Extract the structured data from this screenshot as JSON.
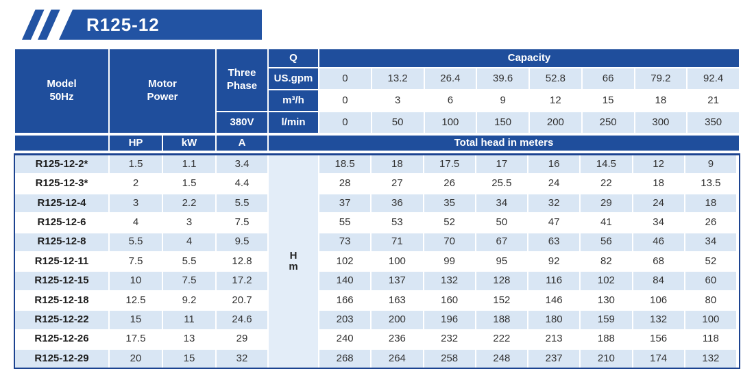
{
  "banner": {
    "title": "R125-12"
  },
  "colors": {
    "header_blue": "#1f4e9c",
    "banner_blue": "#2253a3",
    "light_row_blue": "#d9e6f4",
    "hm_column_blue": "#e3edf8",
    "border_navy": "#1c4390",
    "text_dark": "#333333",
    "text_white": "#ffffff"
  },
  "table": {
    "header": {
      "model_line1": "Model",
      "model_line2": "50Hz",
      "motor_line1": "Motor",
      "motor_line2": "Power",
      "three_phase_line1": "Three",
      "three_phase_line2": "Phase",
      "voltage": "380V",
      "q": "Q",
      "capacity": "Capacity",
      "unit_us_gpm": "US.gpm",
      "unit_m3h": "m³/h",
      "unit_lmin": "l/min",
      "us_gpm_values": [
        "0",
        "13.2",
        "26.4",
        "39.6",
        "52.8",
        "66",
        "79.2",
        "92.4"
      ],
      "m3h_values": [
        "0",
        "3",
        "6",
        "9",
        "12",
        "15",
        "18",
        "21"
      ],
      "lmin_values": [
        "0",
        "50",
        "100",
        "150",
        "200",
        "250",
        "300",
        "350"
      ],
      "hp": "HP",
      "kw": "kW",
      "amp": "A",
      "total_head": "Total head in meters",
      "head_unit_line1": "H",
      "head_unit_line2": "m"
    },
    "rows": [
      {
        "model": "R125-12-2*",
        "hp": "1.5",
        "kw": "1.1",
        "amp": "3.4",
        "heads": [
          "18.5",
          "18",
          "17.5",
          "17",
          "16",
          "14.5",
          "12",
          "9"
        ]
      },
      {
        "model": "R125-12-3*",
        "hp": "2",
        "kw": "1.5",
        "amp": "4.4",
        "heads": [
          "28",
          "27",
          "26",
          "25.5",
          "24",
          "22",
          "18",
          "13.5"
        ]
      },
      {
        "model": "R125-12-4",
        "hp": "3",
        "kw": "2.2",
        "amp": "5.5",
        "heads": [
          "37",
          "36",
          "35",
          "34",
          "32",
          "29",
          "24",
          "18"
        ]
      },
      {
        "model": "R125-12-6",
        "hp": "4",
        "kw": "3",
        "amp": "7.5",
        "heads": [
          "55",
          "53",
          "52",
          "50",
          "47",
          "41",
          "34",
          "26"
        ]
      },
      {
        "model": "R125-12-8",
        "hp": "5.5",
        "kw": "4",
        "amp": "9.5",
        "heads": [
          "73",
          "71",
          "70",
          "67",
          "63",
          "56",
          "46",
          "34"
        ]
      },
      {
        "model": "R125-12-11",
        "hp": "7.5",
        "kw": "5.5",
        "amp": "12.8",
        "heads": [
          "102",
          "100",
          "99",
          "95",
          "92",
          "82",
          "68",
          "52"
        ]
      },
      {
        "model": "R125-12-15",
        "hp": "10",
        "kw": "7.5",
        "amp": "17.2",
        "heads": [
          "140",
          "137",
          "132",
          "128",
          "116",
          "102",
          "84",
          "60"
        ]
      },
      {
        "model": "R125-12-18",
        "hp": "12.5",
        "kw": "9.2",
        "amp": "20.7",
        "heads": [
          "166",
          "163",
          "160",
          "152",
          "146",
          "130",
          "106",
          "80"
        ]
      },
      {
        "model": "R125-12-22",
        "hp": "15",
        "kw": "11",
        "amp": "24.6",
        "heads": [
          "203",
          "200",
          "196",
          "188",
          "180",
          "159",
          "132",
          "100"
        ]
      },
      {
        "model": "R125-12-26",
        "hp": "17.5",
        "kw": "13",
        "amp": "29",
        "heads": [
          "240",
          "236",
          "232",
          "222",
          "213",
          "188",
          "156",
          "118"
        ]
      },
      {
        "model": "R125-12-29",
        "hp": "20",
        "kw": "15",
        "amp": "32",
        "heads": [
          "268",
          "264",
          "258",
          "248",
          "237",
          "210",
          "174",
          "132"
        ]
      }
    ]
  }
}
